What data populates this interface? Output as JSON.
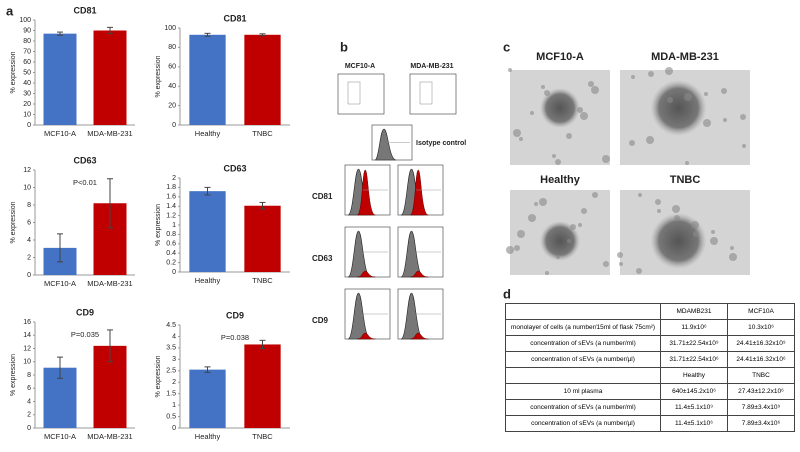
{
  "panel_labels": [
    "a",
    "b",
    "c",
    "d"
  ],
  "chart_data": [
    {
      "type": "bar",
      "title": "CD81",
      "ylabel": "% expression",
      "categories": [
        "MCF10-A",
        "MDA-MB-231"
      ],
      "values": [
        87,
        90
      ],
      "errors": [
        1.5,
        3
      ],
      "colors": [
        "#4472c4",
        "#c00000"
      ],
      "ylim": [
        0,
        100
      ],
      "yticks": [
        0,
        10,
        20,
        30,
        40,
        50,
        60,
        70,
        80,
        90,
        100
      ]
    },
    {
      "type": "bar",
      "title": "CD81",
      "ylabel": "% expression",
      "categories": [
        "Healthy",
        "TNBC"
      ],
      "values": [
        93,
        93
      ],
      "errors": [
        1.5,
        1
      ],
      "colors": [
        "#4472c4",
        "#c00000"
      ],
      "ylim": [
        0,
        100
      ],
      "yticks": [
        0,
        20,
        40,
        60,
        80,
        100
      ]
    },
    {
      "type": "bar",
      "title": "CD63",
      "ylabel": "% expression",
      "annotation": "P<0.01",
      "categories": [
        "MCF10-A",
        "MDA-MB-231"
      ],
      "values": [
        3.1,
        8.2
      ],
      "errors": [
        1.6,
        2.8
      ],
      "colors": [
        "#4472c4",
        "#c00000"
      ],
      "ylim": [
        0,
        12
      ],
      "yticks": [
        0,
        2,
        4,
        6,
        8,
        10,
        12
      ]
    },
    {
      "type": "bar",
      "title": "CD63",
      "ylabel": "% expression",
      "categories": [
        "Healthy",
        "TNBC"
      ],
      "values": [
        1.72,
        1.41
      ],
      "errors": [
        0.08,
        0.07
      ],
      "colors": [
        "#4472c4",
        "#c00000"
      ],
      "ylim": [
        0,
        2
      ],
      "yticks": [
        0,
        0.2,
        0.4,
        0.6,
        0.8,
        1,
        1.2,
        1.4,
        1.6,
        1.8,
        2
      ]
    },
    {
      "type": "bar",
      "title": "CD9",
      "ylabel": "% expression",
      "annotation": "P=0.035",
      "categories": [
        "MCF10-A",
        "MDA-MB-231"
      ],
      "values": [
        9.1,
        12.4
      ],
      "errors": [
        1.6,
        2.4
      ],
      "colors": [
        "#4472c4",
        "#c00000"
      ],
      "ylim": [
        0,
        16
      ],
      "yticks": [
        0,
        2,
        4,
        6,
        8,
        10,
        12,
        14,
        16
      ]
    },
    {
      "type": "bar",
      "title": "CD9",
      "ylabel": "% expression",
      "annotation": "P=0.038",
      "categories": [
        "Healthy",
        "TNBC"
      ],
      "values": [
        2.55,
        3.65
      ],
      "errors": [
        0.12,
        0.18
      ],
      "colors": [
        "#4472c4",
        "#c00000"
      ],
      "ylim": [
        0,
        4.5
      ],
      "yticks": [
        0,
        0.5,
        1,
        1.5,
        2,
        2.5,
        3,
        3.5,
        4,
        4.5
      ]
    }
  ],
  "flow": {
    "columns": [
      "MCF10-A",
      "MDA-MB-231"
    ],
    "isotype": "Isotype control",
    "rows": [
      "CD81",
      "CD63",
      "CD9"
    ]
  },
  "tem": {
    "labels": [
      "MCF10-A",
      "MDA-MB-231",
      "Healthy",
      "TNBC"
    ]
  },
  "table": {
    "groups": [
      {
        "header": [
          "MDAMB231",
          "MCF10A"
        ],
        "rows": [
          {
            "label": "monolayer of cells (a number/15ml of flask 75cm²)",
            "cells": [
              "11.9x10⁶",
              "10.3x10⁶"
            ]
          },
          {
            "label": "concentration  of sEVs (a number/ml)",
            "cells": [
              "31.71±22.54x10⁹",
              "24.41±16.32x10⁹"
            ]
          },
          {
            "label": "concentration  of sEVs (a number/µl)",
            "cells": [
              "31.71±22.54x10⁶",
              "24.41±16.32x10⁶"
            ]
          }
        ]
      },
      {
        "header": [
          "Healthy",
          "TNBC"
        ],
        "rows": [
          {
            "label": "10 ml plasma",
            "cells": [
              "640±145.2x10⁶",
              "27.43±12.2x10⁶"
            ]
          },
          {
            "label": "concentration  of sEVs (a number/ml)",
            "cells": [
              "11.4±5.1x10⁹",
              "7.89±3.4x10⁹"
            ]
          },
          {
            "label": "concentration  of sEVs (a number/µl)",
            "cells": [
              "11.4±5.1x10⁶",
              "7.89±3.4x10⁶"
            ]
          }
        ]
      }
    ]
  }
}
